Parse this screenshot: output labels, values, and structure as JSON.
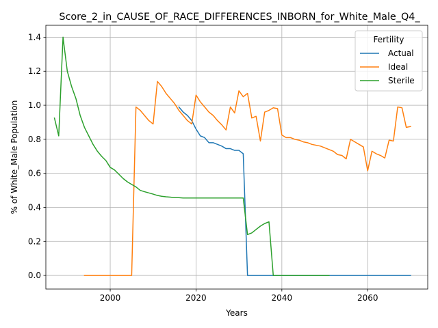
{
  "chart_data": {
    "type": "line",
    "title": "Score_2_in_CAUSE_OF_RACE_DIFFERENCES_INBORN_for_White_Male_Q4_",
    "xlabel": "Years",
    "ylabel": "% of White_Male Population",
    "xlim": [
      1985,
      2074
    ],
    "ylim": [
      -0.08,
      1.47
    ],
    "xticks": [
      2000,
      2020,
      2040,
      2060
    ],
    "yticks": [
      0.0,
      0.2,
      0.4,
      0.6,
      0.8,
      1.0,
      1.2,
      1.4
    ],
    "grid": true,
    "legend": {
      "title": "Fertility",
      "location": "top-right"
    },
    "series": [
      {
        "name": "Actual",
        "color": "#1f77b4",
        "points": [
          [
            2016,
            0.99
          ],
          [
            2017,
            0.96
          ],
          [
            2018,
            0.94
          ],
          [
            2019,
            0.91
          ],
          [
            2020,
            0.86
          ],
          [
            2021,
            0.82
          ],
          [
            2022,
            0.81
          ],
          [
            2023,
            0.78
          ],
          [
            2024,
            0.78
          ],
          [
            2025,
            0.77
          ],
          [
            2026,
            0.76
          ],
          [
            2027,
            0.745
          ],
          [
            2028,
            0.745
          ],
          [
            2029,
            0.735
          ],
          [
            2030,
            0.735
          ],
          [
            2031,
            0.715
          ],
          [
            2032,
            0.0
          ],
          [
            2040,
            0.0
          ],
          [
            2050,
            0.0
          ],
          [
            2060,
            0.0
          ],
          [
            2070,
            0.0
          ]
        ]
      },
      {
        "name": "Ideal",
        "color": "#ff7f0e",
        "points": [
          [
            1994,
            0.0
          ],
          [
            2000,
            0.0
          ],
          [
            2005,
            0.0
          ],
          [
            2006,
            0.99
          ],
          [
            2007,
            0.97
          ],
          [
            2008,
            0.94
          ],
          [
            2009,
            0.91
          ],
          [
            2010,
            0.89
          ],
          [
            2011,
            1.14
          ],
          [
            2012,
            1.11
          ],
          [
            2013,
            1.07
          ],
          [
            2014,
            1.04
          ],
          [
            2015,
            1.01
          ],
          [
            2016,
            0.97
          ],
          [
            2017,
            0.94
          ],
          [
            2018,
            0.91
          ],
          [
            2019,
            0.89
          ],
          [
            2020,
            1.06
          ],
          [
            2021,
            1.02
          ],
          [
            2022,
            0.99
          ],
          [
            2023,
            0.96
          ],
          [
            2024,
            0.94
          ],
          [
            2025,
            0.91
          ],
          [
            2026,
            0.885
          ],
          [
            2027,
            0.855
          ],
          [
            2028,
            0.99
          ],
          [
            2029,
            0.955
          ],
          [
            2030,
            1.085
          ],
          [
            2031,
            1.05
          ],
          [
            2032,
            1.07
          ],
          [
            2033,
            0.925
          ],
          [
            2034,
            0.935
          ],
          [
            2035,
            0.79
          ],
          [
            2036,
            0.96
          ],
          [
            2037,
            0.97
          ],
          [
            2038,
            0.985
          ],
          [
            2039,
            0.98
          ],
          [
            2040,
            0.825
          ],
          [
            2041,
            0.81
          ],
          [
            2042,
            0.81
          ],
          [
            2043,
            0.8
          ],
          [
            2044,
            0.795
          ],
          [
            2045,
            0.785
          ],
          [
            2046,
            0.78
          ],
          [
            2047,
            0.77
          ],
          [
            2048,
            0.765
          ],
          [
            2049,
            0.76
          ],
          [
            2050,
            0.75
          ],
          [
            2051,
            0.74
          ],
          [
            2052,
            0.73
          ],
          [
            2053,
            0.71
          ],
          [
            2054,
            0.705
          ],
          [
            2055,
            0.685
          ],
          [
            2056,
            0.8
          ],
          [
            2057,
            0.785
          ],
          [
            2058,
            0.77
          ],
          [
            2059,
            0.755
          ],
          [
            2060,
            0.615
          ],
          [
            2061,
            0.73
          ],
          [
            2062,
            0.715
          ],
          [
            2063,
            0.705
          ],
          [
            2064,
            0.69
          ],
          [
            2065,
            0.795
          ],
          [
            2066,
            0.79
          ],
          [
            2067,
            0.99
          ],
          [
            2068,
            0.985
          ],
          [
            2069,
            0.87
          ],
          [
            2070,
            0.875
          ]
        ]
      },
      {
        "name": "Sterile",
        "color": "#2ca02c",
        "points": [
          [
            1987,
            0.925
          ],
          [
            1988,
            0.82
          ],
          [
            1989,
            1.4
          ],
          [
            1990,
            1.2
          ],
          [
            1991,
            1.11
          ],
          [
            1992,
            1.04
          ],
          [
            1993,
            0.94
          ],
          [
            1994,
            0.87
          ],
          [
            1995,
            0.82
          ],
          [
            1996,
            0.77
          ],
          [
            1997,
            0.73
          ],
          [
            1998,
            0.7
          ],
          [
            1999,
            0.675
          ],
          [
            2000,
            0.635
          ],
          [
            2001,
            0.62
          ],
          [
            2002,
            0.595
          ],
          [
            2003,
            0.57
          ],
          [
            2004,
            0.55
          ],
          [
            2005,
            0.535
          ],
          [
            2006,
            0.52
          ],
          [
            2007,
            0.5
          ],
          [
            2008,
            0.492
          ],
          [
            2009,
            0.485
          ],
          [
            2010,
            0.478
          ],
          [
            2011,
            0.47
          ],
          [
            2012,
            0.465
          ],
          [
            2013,
            0.462
          ],
          [
            2014,
            0.46
          ],
          [
            2015,
            0.457
          ],
          [
            2016,
            0.457
          ],
          [
            2017,
            0.455
          ],
          [
            2020,
            0.455
          ],
          [
            2025,
            0.455
          ],
          [
            2031,
            0.455
          ],
          [
            2032,
            0.24
          ],
          [
            2033,
            0.25
          ],
          [
            2034,
            0.27
          ],
          [
            2035,
            0.29
          ],
          [
            2036,
            0.305
          ],
          [
            2037,
            0.315
          ],
          [
            2038,
            0.0
          ],
          [
            2045,
            0.0
          ],
          [
            2051,
            0.0
          ]
        ]
      }
    ]
  }
}
